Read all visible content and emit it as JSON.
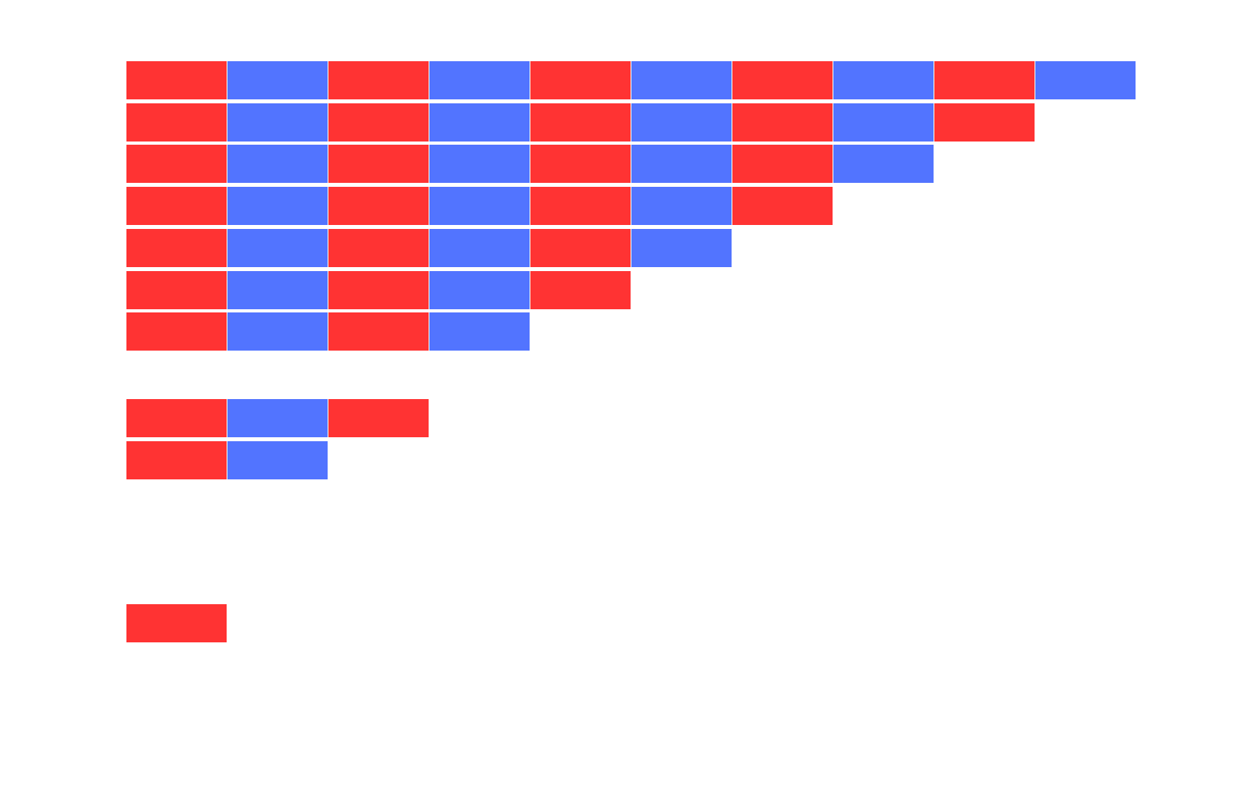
{
  "colors": [
    "#ff3333",
    "#5274ff"
  ]
}
